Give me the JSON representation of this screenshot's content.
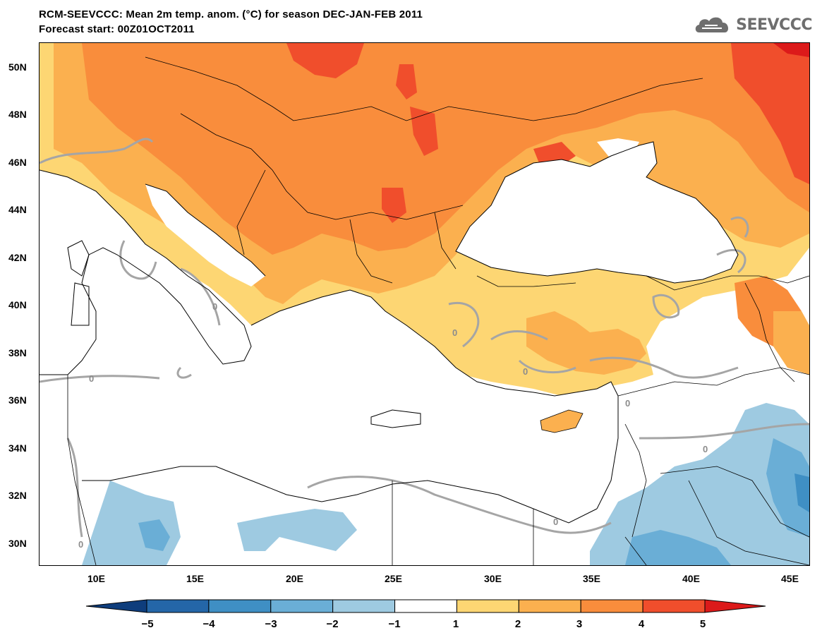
{
  "title": {
    "line1": "RCM-SEEVCCC: Mean 2m temp. anom. (°C) for season DEC-JAN-FEB 2011",
    "line2": "Forecast start: 00Z01OCT2011"
  },
  "logo": {
    "text": "SEEVCCC",
    "icon": "cloud-icon"
  },
  "map": {
    "variable": "Mean 2m temperature anomaly",
    "units": "°C",
    "season": "DEC-JAN-FEB 2011",
    "lat_labels": [
      "50N",
      "48N",
      "46N",
      "44N",
      "42N",
      "40N",
      "38N",
      "36N",
      "34N",
      "32N",
      "30N"
    ],
    "lon_labels": [
      "10E",
      "15E",
      "20E",
      "25E",
      "30E",
      "35E",
      "40E",
      "45E"
    ],
    "contour_label": "0",
    "colors": {
      "ocean": "#ffffff",
      "anom_1_2": "#fdd673",
      "anom_2_3": "#fbb04f",
      "anom_3_4": "#f98d3c",
      "anom_4_5": "#f04e2c",
      "anom_gt5": "#dc1a1a",
      "anom_m1_m2": "#9ecae1",
      "anom_m2_m3": "#6aaed6",
      "anom_m3_m4": "#3f8fc4",
      "anom_m4_m5": "#2466a8",
      "anom_lt_m5": "#0e3d7c",
      "zero_contour": "#a5a5a5"
    }
  },
  "colorbar": {
    "ticks": [
      "−5",
      "−4",
      "−3",
      "−2",
      "−1",
      "1",
      "2",
      "3",
      "4",
      "5"
    ],
    "bins": [
      "#0e3d7c",
      "#2466a8",
      "#3f8fc4",
      "#6aaed6",
      "#9ecae1",
      "#ffffff",
      "#fdd673",
      "#fbb04f",
      "#f98d3c",
      "#f04e2c",
      "#dc1a1a"
    ]
  }
}
